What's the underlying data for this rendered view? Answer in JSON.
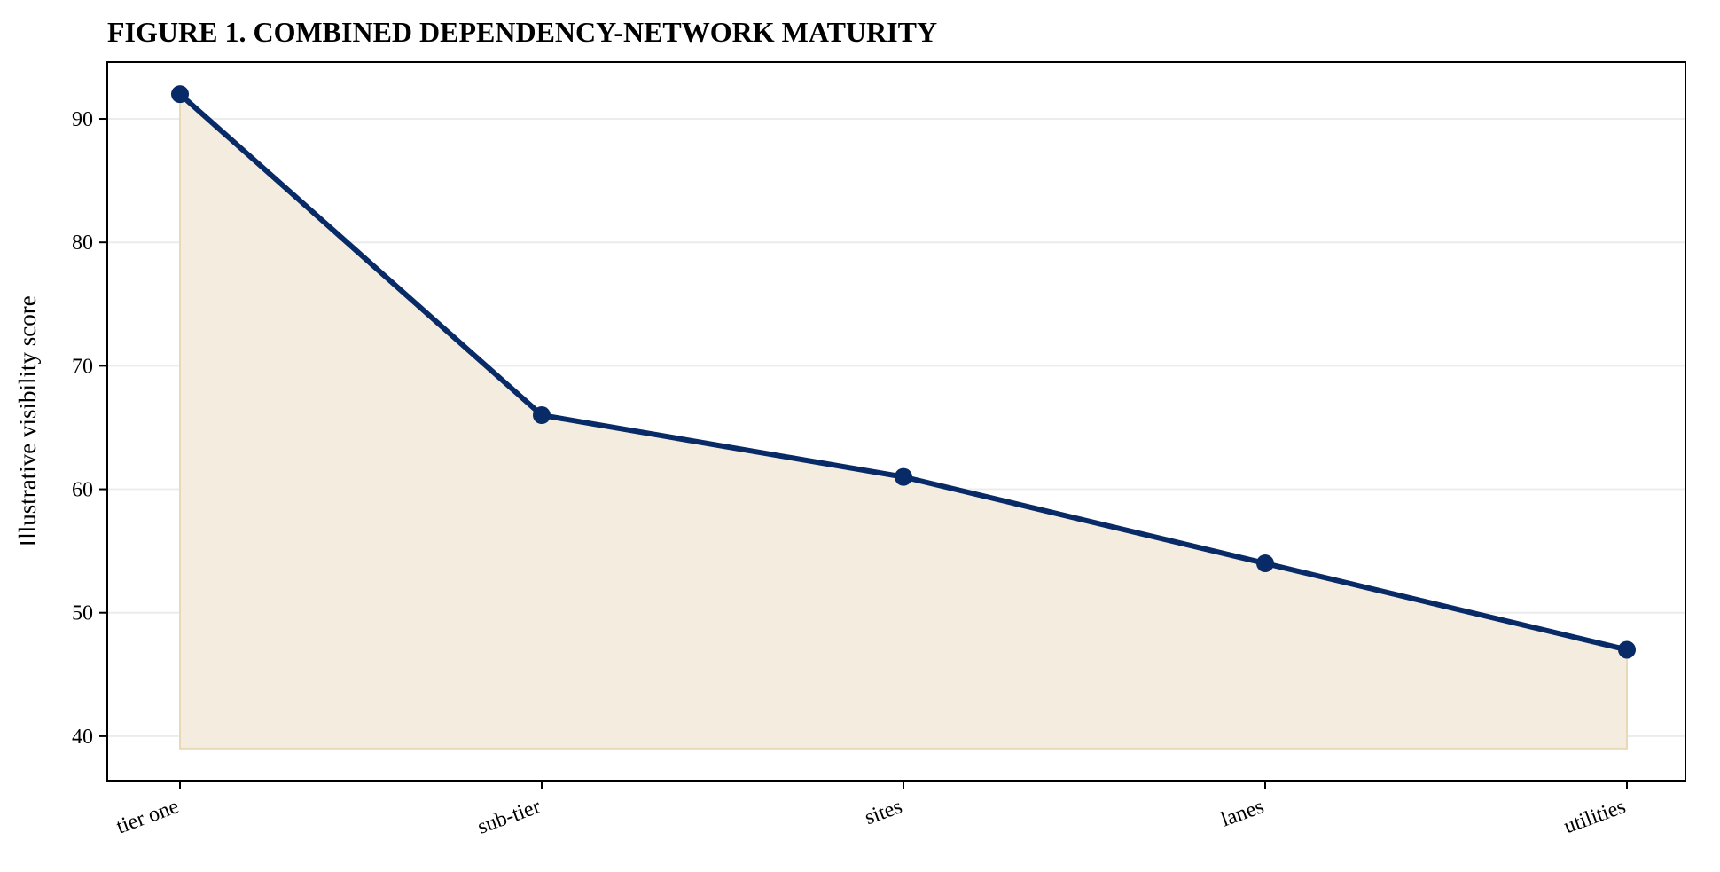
{
  "chart_data": {
    "type": "area",
    "title": "FIGURE 1. COMBINED DEPENDENCY-NETWORK MATURITY",
    "xlabel": "",
    "ylabel": "Illustrative visibility score",
    "categories": [
      "tier one",
      "sub-tier",
      "sites",
      "lanes",
      "utilities"
    ],
    "series": [
      {
        "values": [
          92,
          66,
          61,
          54,
          47
        ]
      }
    ],
    "fill_baseline": 39,
    "ylim": [
      36.4,
      94.6
    ],
    "yticks": [
      40,
      50,
      60,
      70,
      80,
      90
    ],
    "grid": "horizontal",
    "colors": {
      "line": "#082a66",
      "marker": "#082a66",
      "fill": "#f4ecde",
      "fill_edge": "#ead9b8",
      "grid": "#ececec",
      "axis": "#000000"
    }
  }
}
